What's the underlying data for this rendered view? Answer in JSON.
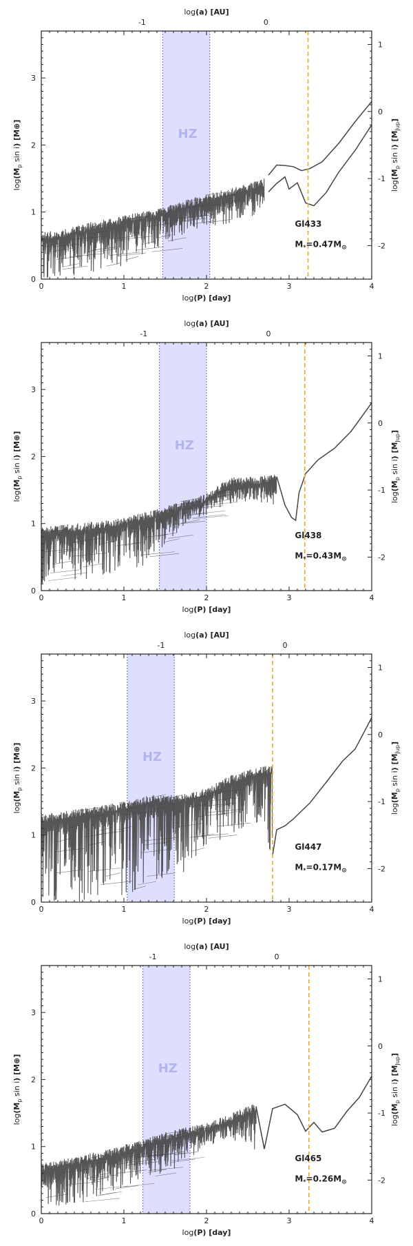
{
  "colors": {
    "hz_fill": "#d8d8ff",
    "hz_edge": "#7070c8",
    "hz_text": "#b3b3ee",
    "curve": "#444444",
    "snowline": "#f5a623",
    "axis": "#222222"
  },
  "chart_data": [
    {
      "type": "line",
      "name": "Gl433",
      "star_label": "Gl433",
      "mass_prefix": "M",
      "mass_sub": "*",
      "mass_value": "=0.47M",
      "mass_symbol": "⊙",
      "hz_label": "HZ",
      "hz_range": [
        1.47,
        2.04
      ],
      "snowline_logP": 3.23,
      "top_axis_label": "log(a) [AU]",
      "top_ticks": [
        {
          "label": "-1",
          "logP": 1.22
        },
        {
          "label": "0",
          "logP": 2.72
        }
      ],
      "right_ticks": [
        {
          "label": "1",
          "logM": 3.5
        },
        {
          "label": "0",
          "logM": 2.5
        },
        {
          "label": "-1",
          "logM": 1.5
        },
        {
          "label": "-2",
          "logM": 0.5
        }
      ],
      "xlabel": "log(P) [day]",
      "ylabel": "log(Mp sin i) [M⊕]",
      "y2label": "log(Mp sin i) [MJup]",
      "xlim": [
        0,
        4
      ],
      "ylim": [
        0,
        3.7
      ],
      "x_ticks": [
        "0",
        "1",
        "2",
        "3",
        "4"
      ],
      "y_ticks": [
        "0",
        "1",
        "2",
        "3"
      ],
      "noisy": [
        {
          "x": 0.0,
          "lo": 0.0,
          "hi": 0.7
        },
        {
          "x": 0.3,
          "lo": 0.0,
          "hi": 0.75
        },
        {
          "x": 0.6,
          "lo": 0.1,
          "hi": 0.85
        },
        {
          "x": 1.0,
          "lo": 0.2,
          "hi": 0.95
        },
        {
          "x": 1.4,
          "lo": 0.3,
          "hi": 1.05
        },
        {
          "x": 1.8,
          "lo": 0.7,
          "hi": 1.2
        },
        {
          "x": 2.1,
          "lo": 0.8,
          "hi": 1.3
        },
        {
          "x": 2.4,
          "lo": 0.85,
          "hi": 1.4
        },
        {
          "x": 2.7,
          "lo": 1.0,
          "hi": 1.5
        }
      ],
      "series": [
        {
          "name": "upper",
          "x": [
            2.75,
            2.85,
            2.95,
            3.05,
            3.15,
            3.25,
            3.4,
            3.6,
            3.8,
            4.0
          ],
          "y": [
            1.55,
            1.72,
            1.7,
            1.65,
            1.6,
            1.62,
            1.75,
            2.0,
            2.35,
            2.65
          ]
        },
        {
          "name": "lower",
          "x": [
            2.75,
            2.85,
            2.95,
            3.0,
            3.1,
            3.2,
            3.3,
            3.45,
            3.6,
            3.8,
            4.0
          ],
          "y": [
            1.3,
            1.45,
            1.5,
            1.35,
            1.45,
            1.15,
            1.12,
            1.3,
            1.6,
            1.95,
            2.3
          ]
        }
      ]
    },
    {
      "type": "line",
      "name": "Gl438",
      "star_label": "Gl438",
      "mass_prefix": "M",
      "mass_sub": "*",
      "mass_value": "=0.43M",
      "mass_symbol": "⊙",
      "hz_label": "HZ",
      "hz_range": [
        1.43,
        2.0
      ],
      "snowline_logP": 3.19,
      "top_axis_label": "log(a) [AU]",
      "top_ticks": [
        {
          "label": "-1",
          "logP": 1.24
        },
        {
          "label": "0",
          "logP": 2.75
        }
      ],
      "right_ticks": [
        {
          "label": "1",
          "logM": 3.5
        },
        {
          "label": "0",
          "logM": 2.5
        },
        {
          "label": "-1",
          "logM": 1.5
        },
        {
          "label": "-2",
          "logM": 0.5
        }
      ],
      "xlabel": "log(P) [day]",
      "ylabel": "log(Mp sin i) [M⊕]",
      "y2label": "log(Mp sin i) [MJup]",
      "xlim": [
        0,
        4
      ],
      "ylim": [
        0,
        3.7
      ],
      "x_ticks": [
        "0",
        "1",
        "2",
        "3",
        "4"
      ],
      "y_ticks": [
        "0",
        "1",
        "2",
        "3"
      ],
      "noisy": [
        {
          "x": 0.0,
          "lo": 0.1,
          "hi": 0.95
        },
        {
          "x": 0.4,
          "lo": 0.15,
          "hi": 1.0
        },
        {
          "x": 0.8,
          "lo": 0.2,
          "hi": 1.05
        },
        {
          "x": 1.2,
          "lo": 0.3,
          "hi": 1.15
        },
        {
          "x": 1.6,
          "lo": 0.8,
          "hi": 1.3
        },
        {
          "x": 2.0,
          "lo": 1.25,
          "hi": 1.45
        },
        {
          "x": 2.3,
          "lo": 1.3,
          "hi": 1.7
        },
        {
          "x": 2.6,
          "lo": 1.35,
          "hi": 1.7
        },
        {
          "x": 2.85,
          "lo": 1.2,
          "hi": 1.75
        }
      ],
      "series": [
        {
          "name": "curve",
          "x": [
            2.85,
            2.95,
            3.03,
            3.08,
            3.12,
            3.2,
            3.35,
            3.55,
            3.75,
            4.0
          ],
          "y": [
            1.7,
            1.3,
            1.1,
            1.05,
            1.45,
            1.75,
            1.95,
            2.15,
            2.4,
            2.8
          ]
        }
      ]
    },
    {
      "type": "line",
      "name": "Gl447",
      "star_label": "Gl447",
      "mass_prefix": "M",
      "mass_sub": "*",
      "mass_value": "=0.17M",
      "mass_symbol": "⊙",
      "hz_label": "HZ",
      "hz_range": [
        1.04,
        1.61
      ],
      "snowline_logP": 2.8,
      "top_axis_label": "log(a) [AU]",
      "top_ticks": [
        {
          "label": "-1",
          "logP": 1.45
        },
        {
          "label": "0",
          "logP": 2.95
        }
      ],
      "right_ticks": [
        {
          "label": "1",
          "logM": 3.5
        },
        {
          "label": "0",
          "logM": 2.5
        },
        {
          "label": "-1",
          "logM": 1.5
        },
        {
          "label": "-2",
          "logM": 0.5
        }
      ],
      "xlabel": "log(P) [day]",
      "ylabel": "log(Mp sin i) [M⊕]",
      "y2label": "log(Mp sin i) [MJup]",
      "xlim": [
        0,
        4
      ],
      "ylim": [
        0,
        3.7
      ],
      "x_ticks": [
        "0",
        "1",
        "2",
        "3",
        "4"
      ],
      "y_ticks": [
        "0",
        "1",
        "2",
        "3"
      ],
      "noisy": [
        {
          "x": 0.0,
          "lo": 0.0,
          "hi": 1.3
        },
        {
          "x": 0.5,
          "lo": 0.0,
          "hi": 1.4
        },
        {
          "x": 1.0,
          "lo": 0.0,
          "hi": 1.5
        },
        {
          "x": 1.3,
          "lo": 0.3,
          "hi": 1.6
        },
        {
          "x": 1.7,
          "lo": 0.4,
          "hi": 1.6
        },
        {
          "x": 2.0,
          "lo": 0.8,
          "hi": 1.7
        },
        {
          "x": 2.3,
          "lo": 1.0,
          "hi": 1.9
        },
        {
          "x": 2.6,
          "lo": 1.2,
          "hi": 2.0
        },
        {
          "x": 2.8,
          "lo": 0.7,
          "hi": 2.05
        }
      ],
      "series": [
        {
          "name": "curve",
          "x": [
            2.8,
            2.85,
            2.95,
            3.05,
            3.25,
            3.45,
            3.65,
            3.8,
            4.0
          ],
          "y": [
            0.7,
            1.1,
            1.15,
            1.25,
            1.5,
            1.8,
            2.1,
            2.3,
            2.75
          ]
        }
      ]
    },
    {
      "type": "line",
      "name": "Gl465",
      "star_label": "Gl465",
      "mass_prefix": "M",
      "mass_sub": "*",
      "mass_value": "=0.26M",
      "mass_symbol": "⊙",
      "hz_label": "HZ",
      "hz_range": [
        1.23,
        1.8
      ],
      "snowline_logP": 3.24,
      "top_axis_label": "log(a) [AU]",
      "top_ticks": [
        {
          "label": "-1",
          "logP": 1.35
        },
        {
          "label": "0",
          "logP": 2.85
        }
      ],
      "right_ticks": [
        {
          "label": "1",
          "logM": 3.5
        },
        {
          "label": "0",
          "logM": 2.5
        },
        {
          "label": "-1",
          "logM": 1.5
        },
        {
          "label": "-2",
          "logM": 0.5
        }
      ],
      "xlabel": "log(P) [day]",
      "ylabel": "log(Mp sin i) [M⊕]",
      "y2label": "log(Mp sin i) [MJup]",
      "xlim": [
        0,
        4
      ],
      "ylim": [
        0,
        3.7
      ],
      "x_ticks": [
        "0",
        "1",
        "2",
        "3",
        "4"
      ],
      "y_ticks": [
        "0",
        "1",
        "2",
        "3"
      ],
      "noisy": [
        {
          "x": 0.0,
          "lo": 0.1,
          "hi": 0.75
        },
        {
          "x": 0.4,
          "lo": 0.1,
          "hi": 0.85
        },
        {
          "x": 0.8,
          "lo": 0.3,
          "hi": 0.95
        },
        {
          "x": 1.2,
          "lo": 0.5,
          "hi": 1.1
        },
        {
          "x": 1.6,
          "lo": 0.6,
          "hi": 1.25
        },
        {
          "x": 2.0,
          "lo": 1.0,
          "hi": 1.35
        },
        {
          "x": 2.3,
          "lo": 1.1,
          "hi": 1.5
        },
        {
          "x": 2.6,
          "lo": 0.9,
          "hi": 1.65
        }
      ],
      "series": [
        {
          "name": "curve",
          "x": [
            2.6,
            2.7,
            2.8,
            2.95,
            3.1,
            3.2,
            3.3,
            3.4,
            3.55,
            3.7,
            3.85,
            4.0
          ],
          "y": [
            1.6,
            0.95,
            1.55,
            1.65,
            1.5,
            1.2,
            1.35,
            1.2,
            1.3,
            1.55,
            1.75,
            2.05
          ]
        }
      ]
    }
  ]
}
